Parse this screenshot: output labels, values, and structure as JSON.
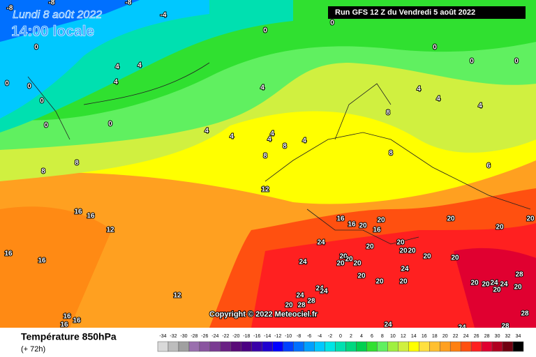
{
  "header": {
    "date": "Lundi 8 août 2022",
    "time": "14:00 locale",
    "run": "Run GFS 12 Z du Vendredi 5 août 2022",
    "copyright": "Copyright © 2022 Meteociel.fr"
  },
  "footer": {
    "title": "Température 850hPa",
    "subtitle": "(+ 72h)"
  },
  "colorbar": {
    "labels": [
      -34,
      -32,
      -30,
      -28,
      -26,
      -24,
      -22,
      -20,
      -18,
      -16,
      -14,
      -12,
      -10,
      -8,
      -6,
      -4,
      -2,
      0,
      2,
      4,
      6,
      8,
      10,
      12,
      14,
      16,
      18,
      20,
      22,
      24,
      26,
      28,
      30,
      32,
      34
    ],
    "colors": [
      "#d9d9d9",
      "#bdbdbd",
      "#a0a0a0",
      "#9a6fae",
      "#8a54a0",
      "#7a3a92",
      "#6a2084",
      "#5a0a78",
      "#4b0082",
      "#3a00a8",
      "#2000d0",
      "#0000ff",
      "#0040ff",
      "#0070ff",
      "#00a0ff",
      "#00c8ff",
      "#00e5e5",
      "#00e0b0",
      "#00d880",
      "#00d050",
      "#30e030",
      "#60f060",
      "#a0f040",
      "#d0f040",
      "#ffff00",
      "#ffe040",
      "#ffc030",
      "#ffa020",
      "#ff8010",
      "#ff5010",
      "#ff2020",
      "#e00030",
      "#b00020",
      "#700010",
      "#000000"
    ]
  },
  "contour_labels": [
    "-8",
    "-8",
    "-8",
    "-4",
    "0",
    "0",
    "0",
    "0",
    "0",
    "0",
    "0",
    "0",
    "0",
    "0",
    "0",
    "4",
    "4",
    "4",
    "4",
    "4",
    "4",
    "4",
    "4",
    "4",
    "4",
    "4",
    "4",
    "8",
    "8",
    "8",
    "8",
    "8",
    "8",
    "6",
    "12",
    "12",
    "12",
    "16",
    "16",
    "16",
    "16",
    "16",
    "16",
    "16",
    "16",
    "16",
    "16",
    "20",
    "20",
    "20",
    "20",
    "20",
    "20",
    "20",
    "20",
    "20",
    "20",
    "20",
    "20",
    "20",
    "20",
    "20",
    "20",
    "20",
    "20",
    "20",
    "20",
    "20",
    "20",
    "20",
    "24",
    "24",
    "24",
    "24",
    "24",
    "24",
    "24",
    "24",
    "28",
    "28",
    "28",
    "28",
    "28",
    "24",
    "24"
  ]
}
